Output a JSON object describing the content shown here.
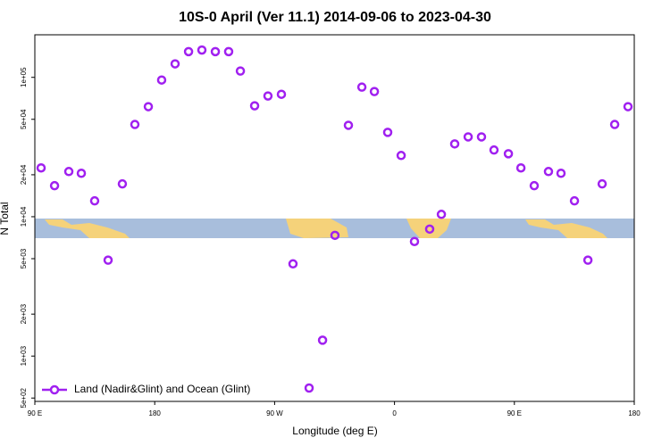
{
  "chart_data": {
    "type": "scatter",
    "title": "10S-0 April (Ver 11.1)   2014-09-06 to 2023-04-30",
    "xlabel": "Longitude (deg E)",
    "ylabel": "N Total",
    "log_y": true,
    "legend": "bottom-left",
    "xlim": [
      90,
      540
    ],
    "xticks": [
      {
        "value": 90,
        "label": "90 E"
      },
      180,
      {
        "value": 270,
        "label": "90 W"
      },
      {
        "value": 360,
        "label": "0"
      },
      {
        "value": 450,
        "label": "90 E"
      },
      {
        "value": 540,
        "label": "180"
      }
    ],
    "ylim": [
      473,
      202000
    ],
    "yticks": [
      {
        "value": 500,
        "label": "5e+02"
      },
      {
        "value": 1000,
        "label": "1e+03"
      },
      {
        "value": 2000,
        "label": "2e+03"
      },
      {
        "value": 5000,
        "label": "5e+03"
      },
      {
        "value": 10000,
        "label": "1e+04"
      },
      {
        "value": 20000,
        "label": "2e+04"
      },
      {
        "value": 50000,
        "label": "5e+04"
      },
      {
        "value": 100000,
        "label": "1e+05"
      }
    ],
    "x": [
      94.7,
      104.8,
      115.5,
      124.9,
      134.9,
      145,
      155.7,
      165.1,
      175.2,
      185.2,
      195.3,
      205.4,
      215.4,
      225.5,
      235.5,
      244.3,
      255,
      265,
      275.1,
      283.8,
      295.9,
      306,
      315.3,
      325.4,
      335.5,
      344.9,
      354.9,
      365,
      375,
      386.4,
      395.2,
      405.2,
      415.3,
      425.3,
      434.7,
      445.5,
      454.9,
      464.9,
      475.6,
      485,
      495.1,
      505.2,
      515.9,
      525.3,
      535.3
    ],
    "series": [
      {
        "name": "Land (Nadir&Glint) and Ocean (Glint)",
        "color": "#a020f0",
        "values": [
          22400,
          16700,
          21100,
          20500,
          13000,
          4880,
          17200,
          45900,
          61600,
          95700,
          125000,
          153000,
          157000,
          153000,
          153000,
          111000,
          62500,
          73500,
          75600,
          4590,
          590,
          1300,
          7350,
          45300,
          85100,
          79100,
          40300,
          27500,
          6640,
          8150,
          10400,
          33300,
          37400,
          37400,
          30100,
          28300,
          22400,
          16700,
          21100,
          20500,
          13000,
          4880,
          17200,
          45900,
          61600
        ]
      }
    ]
  }
}
